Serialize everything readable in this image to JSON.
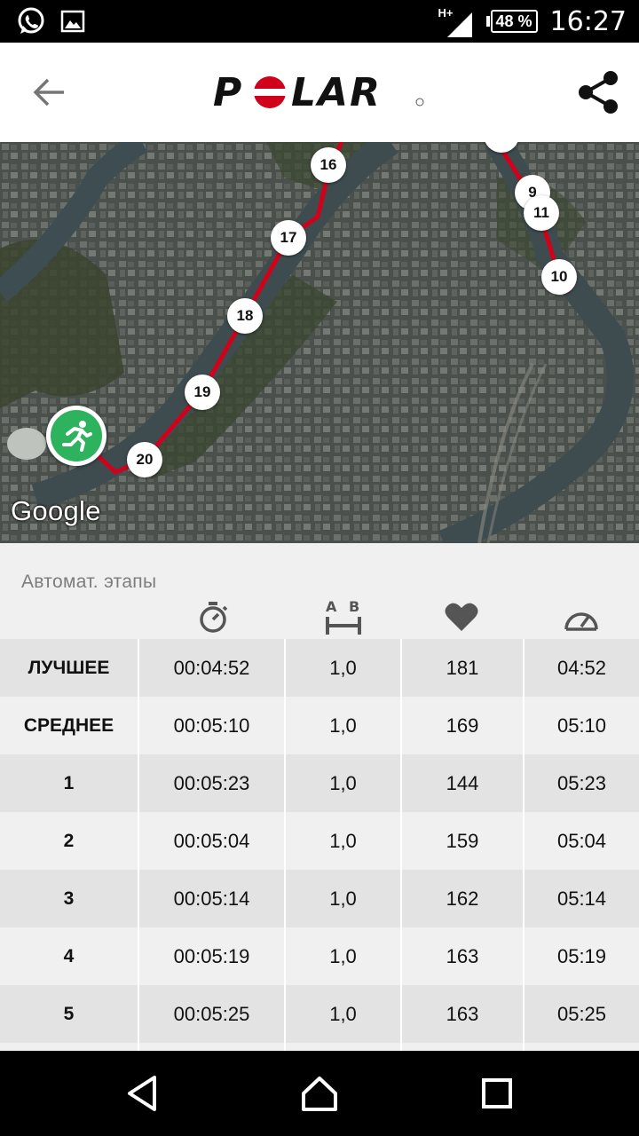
{
  "status_bar": {
    "time": "16:27",
    "battery": "48 %",
    "network": "H+"
  },
  "app_bar": {
    "logo_text": "POLAR"
  },
  "map": {
    "attribution": "Google",
    "km_markers": [
      "16",
      "17",
      "18",
      "19",
      "20",
      "9",
      "11",
      "10"
    ]
  },
  "laps": {
    "title": "Автомат. этапы",
    "columns": [
      "duration",
      "distance",
      "heart-rate",
      "pace"
    ],
    "rows": [
      {
        "label": "ЛУЧШЕЕ",
        "time": "00:04:52",
        "distance": "1,0",
        "hr": "181",
        "pace": "04:52"
      },
      {
        "label": "СРЕДНЕЕ",
        "time": "00:05:10",
        "distance": "1,0",
        "hr": "169",
        "pace": "05:10"
      },
      {
        "label": "1",
        "time": "00:05:23",
        "distance": "1,0",
        "hr": "144",
        "pace": "05:23"
      },
      {
        "label": "2",
        "time": "00:05:04",
        "distance": "1,0",
        "hr": "159",
        "pace": "05:04"
      },
      {
        "label": "3",
        "time": "00:05:14",
        "distance": "1,0",
        "hr": "162",
        "pace": "05:14"
      },
      {
        "label": "4",
        "time": "00:05:19",
        "distance": "1,0",
        "hr": "163",
        "pace": "05:19"
      },
      {
        "label": "5",
        "time": "00:05:25",
        "distance": "1,0",
        "hr": "163",
        "pace": "05:25"
      }
    ]
  },
  "colors": {
    "route": "#d0021b",
    "start_marker": "#2db35d",
    "brand": "#d0021b"
  }
}
